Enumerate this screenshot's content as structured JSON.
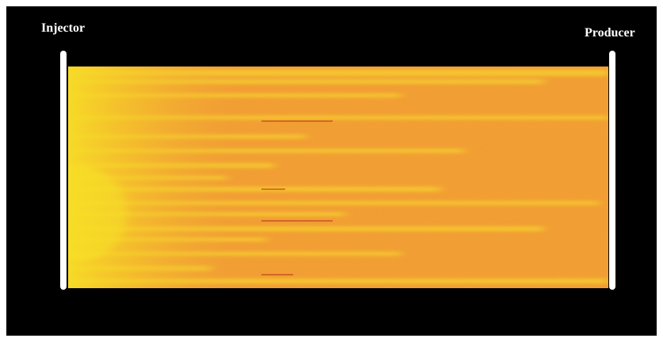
{
  "labels": {
    "injector": "Injector",
    "producer": "Producer"
  }
}
